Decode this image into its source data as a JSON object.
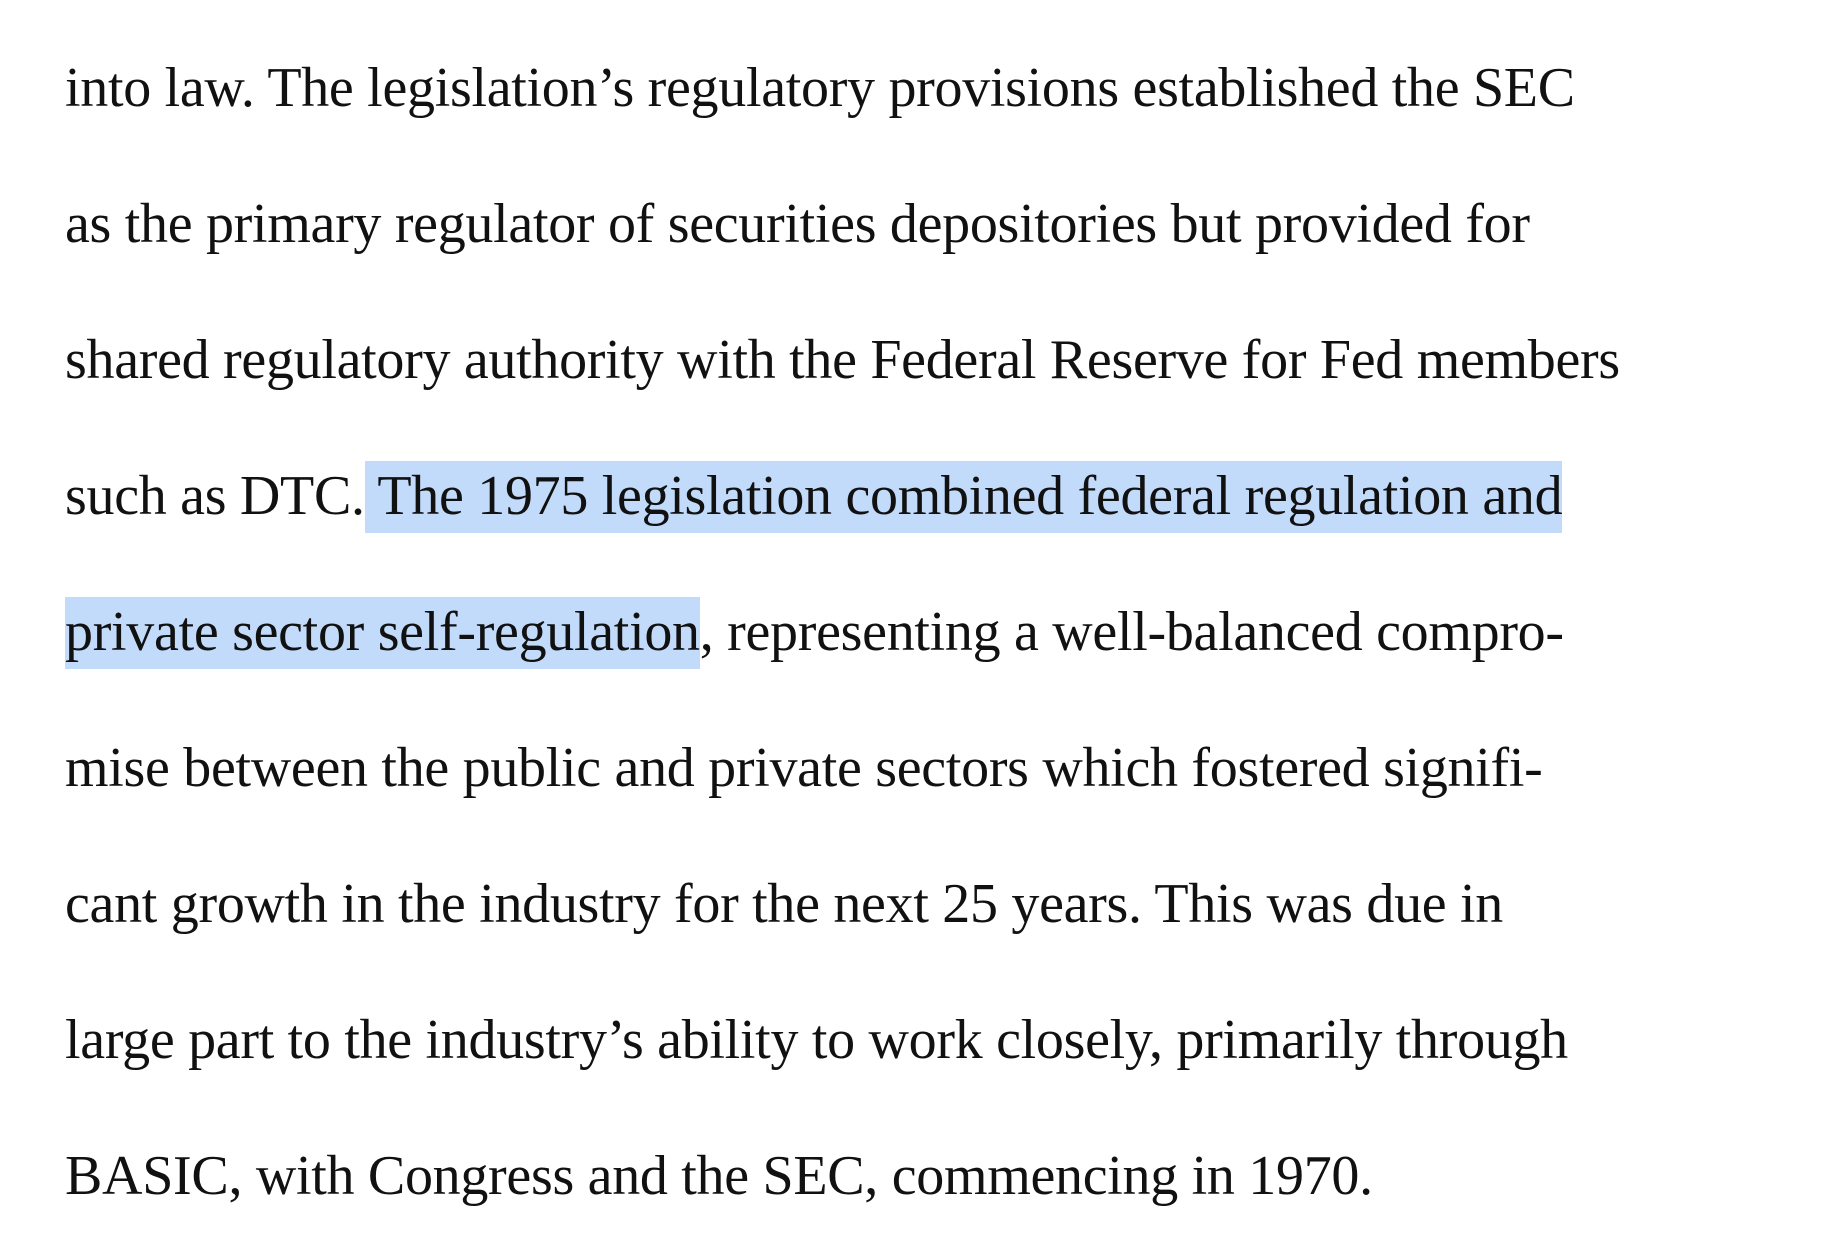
{
  "document": {
    "lines": [
      "into law. The legislation’s regulatory provisions established the SEC",
      "as the primary regulator of securities depositories but provided for",
      "shared regulatory authority with the Federal Reserve for Fed members",
      "such as DTC.",
      " The 1975 legislation combined federal regulation and",
      "private sector self-regulation",
      ", representing a well-balanced compro-",
      "mise between the public and private sectors which fostered signifi-",
      "cant growth in the industry for the next 25 years. This was due in",
      "large part to the industry’s ability to work closely, primarily through",
      "BASIC, with Congress and the SEC, commencing in 1970."
    ],
    "highlight_color": "#c2dbfb",
    "text_color": "#111111"
  }
}
